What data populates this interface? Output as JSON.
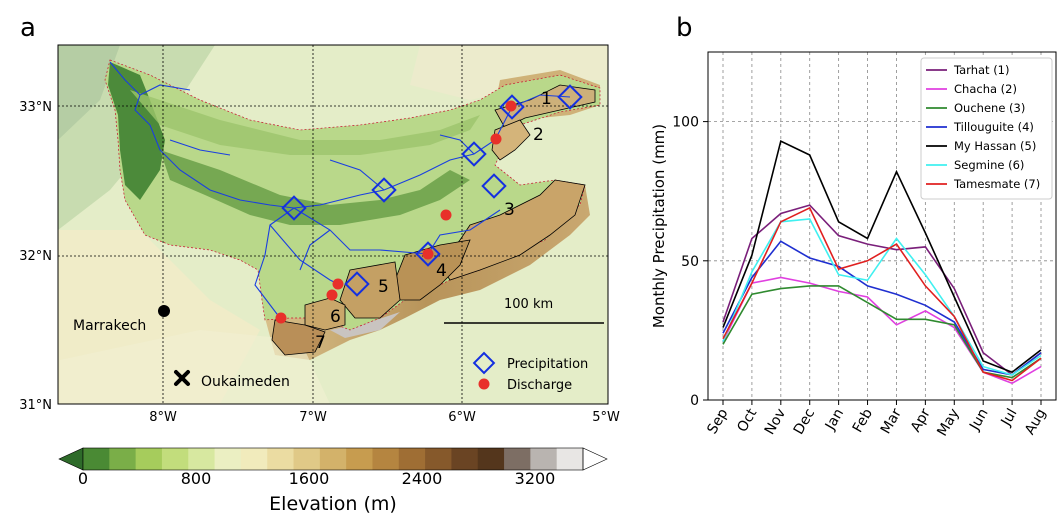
{
  "panel_a": {
    "label": "a",
    "lat_ticks": [
      "31°N",
      "32°N",
      "33°N"
    ],
    "lon_ticks": [
      "8°W",
      "7°W",
      "6°W",
      "5°W"
    ],
    "city_label": "Marrakech",
    "station_label": "Oukaimeden",
    "scale_bar_label": "100 km",
    "basin_numbers": [
      "1",
      "2",
      "3",
      "4",
      "5",
      "6",
      "7"
    ],
    "legend": {
      "precipitation": "Precipitation",
      "discharge": "Discharge"
    },
    "colorbar": {
      "title": "Elevation (m)",
      "ticks": [
        "0",
        "800",
        "1600",
        "2400",
        "3200"
      ],
      "colors": [
        "#2e6b2a",
        "#4a8a34",
        "#7aae48",
        "#a6cc5c",
        "#c2dd7c",
        "#d7e8a0",
        "#ebefc2",
        "#f1ebbc",
        "#ebdca2",
        "#e0c987",
        "#d3b26a",
        "#c79c4f",
        "#b58540",
        "#9f6e34",
        "#86592b",
        "#6a4423",
        "#54361c",
        "#7d6e64",
        "#b9b4b0",
        "#e8e6e4",
        "#ffffff"
      ]
    }
  },
  "panel_b": {
    "label": "b"
  },
  "chart_data": {
    "type": "line",
    "categories": [
      "Sep",
      "Oct",
      "Nov",
      "Dec",
      "Jan",
      "Feb",
      "Mar",
      "Apr",
      "May",
      "Jun",
      "Jul",
      "Aug"
    ],
    "ylabel": "Monthly Precipitation (mm)",
    "xlabel": "",
    "ylim": [
      0,
      125
    ],
    "yticks": [
      0,
      50,
      100
    ],
    "grid": true,
    "legend_position": "top-right",
    "series": [
      {
        "name": "Tarhat (1)",
        "color": "#7a1f7a",
        "values": [
          28,
          58,
          67,
          70,
          59,
          56,
          54,
          55,
          40,
          17,
          9,
          17
        ]
      },
      {
        "name": "Chacha (2)",
        "color": "#e040e0",
        "values": [
          21,
          42,
          44,
          42,
          39,
          37,
          27,
          32,
          26,
          10,
          6,
          12
        ]
      },
      {
        "name": "Ouchene (3)",
        "color": "#2f8a2f",
        "values": [
          20,
          38,
          40,
          41,
          41,
          35,
          29,
          29,
          27,
          10,
          8,
          15
        ]
      },
      {
        "name": "Tillouguite (4)",
        "color": "#1f2fd0",
        "values": [
          24,
          44,
          57,
          51,
          48,
          41,
          38,
          34,
          28,
          11,
          9,
          17
        ]
      },
      {
        "name": "My Hassan (5)",
        "color": "#000000",
        "values": [
          26,
          52,
          93,
          88,
          64,
          58,
          82,
          60,
          37,
          14,
          10,
          18
        ]
      },
      {
        "name": "Segmine (6)",
        "color": "#40f0f0",
        "values": [
          21,
          46,
          64,
          65,
          45,
          43,
          58,
          45,
          30,
          12,
          9,
          16
        ]
      },
      {
        "name": "Tamesmate (7)",
        "color": "#e02020",
        "values": [
          22,
          42,
          64,
          69,
          47,
          50,
          56,
          41,
          30,
          10,
          7,
          15
        ]
      }
    ]
  }
}
